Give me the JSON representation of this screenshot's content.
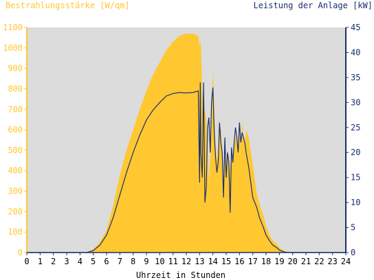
{
  "chart_data": {
    "type": "area",
    "ylabel_left": "Bestrahlungsstärke [W/qm]",
    "ylabel_right": "Leistung der Anlage [kW]",
    "xlabel": "Uhrzeit in Stunden",
    "xlim": [
      0,
      24
    ],
    "ylim_left": [
      0,
      1100
    ],
    "ylim_right": [
      0,
      45
    ],
    "x_ticks": [
      0,
      1,
      2,
      3,
      4,
      5,
      6,
      7,
      8,
      9,
      10,
      11,
      12,
      13,
      14,
      15,
      16,
      17,
      18,
      19,
      20,
      21,
      22,
      23,
      24
    ],
    "y_ticks_left": [
      0,
      100,
      200,
      300,
      400,
      500,
      600,
      700,
      800,
      900,
      1000,
      1100
    ],
    "y_ticks_right": [
      0,
      5,
      10,
      15,
      20,
      25,
      30,
      35,
      40,
      45
    ],
    "grid": false,
    "colors": {
      "plot_background": "#dcdcdc",
      "irradiance_fill": "#ffc830",
      "power_line": "#1a2f6e",
      "left_axis": "#ffc830",
      "right_axis": "#1a2f6e"
    },
    "series": [
      {
        "name": "Bestrahlungsstärke [W/qm]",
        "axis": "left",
        "type": "area",
        "x": [
          0,
          4.5,
          5,
          5.5,
          6,
          6.5,
          7,
          7.5,
          8,
          8.5,
          9,
          9.5,
          10,
          10.5,
          11,
          11.5,
          12,
          12.5,
          12.9,
          13.0,
          13.05,
          13.1,
          13.2,
          13.3,
          13.4,
          13.5,
          13.6,
          13.7,
          13.8,
          13.9,
          14.0,
          14.1,
          14.2,
          14.3,
          14.4,
          14.5,
          14.6,
          14.7,
          14.8,
          14.9,
          15.0,
          15.1,
          15.2,
          15.3,
          15.4,
          15.5,
          15.6,
          15.7,
          15.8,
          15.9,
          16.0,
          16.1,
          16.2,
          16.3,
          16.4,
          16.5,
          16.7,
          17.0,
          17.3,
          17.5,
          17.8,
          18.0,
          18.3,
          18.5,
          18.8,
          19.0,
          19.3,
          19.5,
          19.8,
          20.0,
          20.3,
          20.5,
          24
        ],
        "y": [
          0,
          0,
          15,
          50,
          110,
          230,
          380,
          500,
          600,
          700,
          790,
          870,
          930,
          990,
          1030,
          1060,
          1070,
          1070,
          1060,
          1010,
          1040,
          1000,
          800,
          650,
          700,
          650,
          500,
          350,
          480,
          650,
          900,
          700,
          530,
          450,
          480,
          620,
          600,
          500,
          320,
          560,
          360,
          500,
          470,
          400,
          500,
          450,
          520,
          570,
          540,
          500,
          650,
          520,
          640,
          560,
          530,
          600,
          560,
          430,
          290,
          240,
          180,
          130,
          80,
          60,
          40,
          25,
          10,
          5,
          2,
          0,
          0,
          0,
          0
        ]
      },
      {
        "name": "Leistung der Anlage [kW]",
        "axis": "right",
        "type": "line",
        "x": [
          0,
          4.5,
          5,
          5.5,
          6,
          6.5,
          7,
          7.5,
          8,
          8.5,
          9,
          9.5,
          10,
          10.5,
          11,
          11.5,
          12,
          12.5,
          12.9,
          13.0,
          13.05,
          13.1,
          13.2,
          13.3,
          13.4,
          13.5,
          13.6,
          13.7,
          13.8,
          13.9,
          14.0,
          14.1,
          14.2,
          14.3,
          14.4,
          14.5,
          14.6,
          14.7,
          14.8,
          14.9,
          15.0,
          15.1,
          15.2,
          15.3,
          15.4,
          15.5,
          15.6,
          15.7,
          15.8,
          15.9,
          16.0,
          16.1,
          16.2,
          16.3,
          16.4,
          16.5,
          16.7,
          17.0,
          17.3,
          17.5,
          17.8,
          18.0,
          18.3,
          18.5,
          18.8,
          19.0,
          19.3,
          19.5,
          19.8,
          20.0,
          20.3,
          20.5,
          24
        ],
        "y": [
          0,
          0,
          0.4,
          1.5,
          3.5,
          7,
          11.5,
          16,
          20,
          23.5,
          26.5,
          28.5,
          30,
          31.3,
          31.8,
          32.0,
          31.9,
          32.0,
          32.3,
          14,
          34,
          20,
          15,
          34,
          10,
          13,
          25,
          27,
          20,
          30,
          33,
          24,
          19,
          16,
          18,
          26,
          22,
          20,
          11,
          23,
          15,
          20,
          18,
          8,
          21,
          18,
          22,
          25,
          23,
          20,
          26,
          22,
          24,
          23,
          22,
          20,
          17,
          11,
          9,
          7,
          5,
          3.5,
          2.2,
          1.5,
          1,
          0.5,
          0.2,
          0.05,
          0,
          0,
          0,
          0,
          0
        ]
      }
    ]
  }
}
